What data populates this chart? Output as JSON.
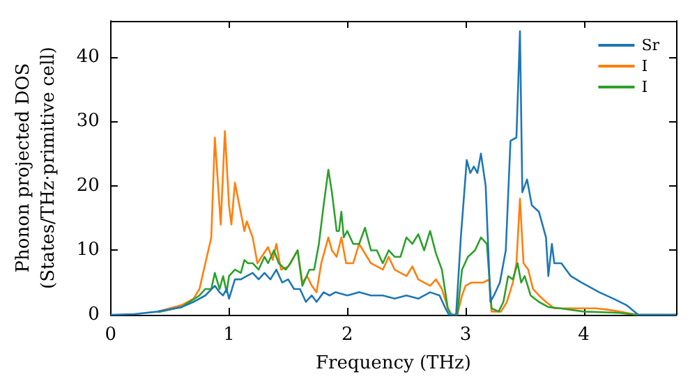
{
  "chart_data": {
    "type": "line",
    "xlabel": "Frequency (THz)",
    "ylabel": "Phonon projected DOS\n(States/THz·primitive cell)",
    "xlim": [
      0,
      4.78
    ],
    "ylim": [
      0,
      45.6
    ],
    "xticks": [
      0,
      1,
      2,
      3,
      4
    ],
    "yticks": [
      0,
      10,
      20,
      30,
      40
    ],
    "grid": false,
    "legend": "top right",
    "marker": "none",
    "line_style": "solid",
    "series": [
      {
        "name": "Sr",
        "color": "#1f77b4",
        "x": [
          0,
          0.2,
          0.4,
          0.6,
          0.7,
          0.8,
          0.88,
          0.92,
          0.95,
          0.98,
          1.0,
          1.05,
          1.1,
          1.15,
          1.2,
          1.25,
          1.3,
          1.35,
          1.4,
          1.45,
          1.5,
          1.55,
          1.6,
          1.65,
          1.7,
          1.74,
          1.8,
          1.85,
          1.9,
          2.0,
          2.1,
          2.2,
          2.3,
          2.4,
          2.5,
          2.6,
          2.7,
          2.78,
          2.83,
          2.86,
          2.92,
          2.96,
          3.01,
          3.04,
          3.07,
          3.1,
          3.13,
          3.17,
          3.21,
          3.24,
          3.29,
          3.34,
          3.38,
          3.43,
          3.46,
          3.48,
          3.52,
          3.56,
          3.62,
          3.68,
          3.7,
          3.73,
          3.75,
          3.81,
          3.89,
          3.98,
          4.13,
          4.25,
          4.36,
          4.46,
          4.78
        ],
        "values": [
          0,
          0.1,
          0.5,
          1.2,
          2,
          3,
          4.5,
          3.5,
          3,
          4,
          2.5,
          5.5,
          5.5,
          6,
          6.5,
          5.5,
          6.5,
          5.5,
          7,
          5,
          5.5,
          4,
          4,
          2,
          3,
          2,
          3.5,
          3,
          3.5,
          3,
          3.5,
          3,
          3,
          2.5,
          3,
          2.5,
          3.5,
          3,
          1,
          0,
          0,
          12,
          24,
          22,
          23,
          22,
          25,
          20,
          2,
          3,
          5,
          10,
          27,
          27.5,
          44,
          19,
          21,
          17,
          16,
          12,
          6,
          11,
          8,
          8,
          6,
          5,
          3.5,
          2.5,
          1.5,
          0,
          0
        ]
      },
      {
        "name": "I",
        "color": "#ff7f0e",
        "x": [
          0.4,
          0.6,
          0.7,
          0.75,
          0.8,
          0.85,
          0.88,
          0.93,
          0.965,
          1.0,
          1.02,
          1.05,
          1.13,
          1.15,
          1.2,
          1.24,
          1.33,
          1.37,
          1.4,
          1.44,
          1.5,
          1.58,
          1.62,
          1.66,
          1.7,
          1.74,
          1.78,
          1.84,
          1.87,
          1.91,
          1.95,
          1.99,
          2.05,
          2.1,
          2.2,
          2.3,
          2.35,
          2.4,
          2.5,
          2.55,
          2.6,
          2.7,
          2.75,
          2.8,
          2.85,
          2.88,
          2.93,
          2.97,
          3.0,
          3.05,
          3.15,
          3.2,
          3.22,
          3.3,
          3.35,
          3.4,
          3.43,
          3.46,
          3.49,
          3.53,
          3.57,
          3.62,
          3.68,
          3.75,
          3.9,
          4.1,
          4.2,
          4.3,
          4.45,
          4.78
        ],
        "values": [
          0.5,
          1.5,
          2.5,
          4,
          8,
          12,
          27.5,
          14,
          28.5,
          17,
          14,
          20.5,
          13,
          14.5,
          12,
          8,
          10.5,
          8.5,
          11,
          7,
          7.5,
          10,
          5,
          6,
          4.5,
          3.5,
          8,
          12,
          10,
          9,
          12,
          8,
          8,
          11,
          8,
          7,
          9,
          7,
          6,
          7.5,
          5.5,
          4.5,
          5.5,
          4,
          1,
          0,
          0,
          3,
          4.5,
          5,
          5,
          5.5,
          0.5,
          0.5,
          2,
          5,
          8,
          18,
          8,
          7,
          4,
          3,
          2,
          1,
          1,
          1,
          0.8,
          0.5,
          0,
          0
        ]
      },
      {
        "name": "I",
        "color": "#2ca02c",
        "x": [
          0.4,
          0.6,
          0.75,
          0.8,
          0.85,
          0.88,
          0.92,
          0.95,
          0.98,
          1.0,
          1.05,
          1.1,
          1.13,
          1.16,
          1.2,
          1.25,
          1.3,
          1.33,
          1.38,
          1.42,
          1.48,
          1.52,
          1.58,
          1.62,
          1.68,
          1.72,
          1.76,
          1.8,
          1.84,
          1.87,
          1.91,
          1.93,
          1.95,
          1.97,
          2.0,
          2.05,
          2.1,
          2.15,
          2.2,
          2.25,
          2.3,
          2.35,
          2.4,
          2.45,
          2.5,
          2.55,
          2.6,
          2.65,
          2.7,
          2.75,
          2.8,
          2.85,
          2.88,
          2.93,
          2.97,
          3.02,
          3.08,
          3.13,
          3.18,
          3.22,
          3.28,
          3.32,
          3.36,
          3.4,
          3.44,
          3.47,
          3.5,
          3.55,
          3.62,
          3.7,
          3.8,
          4.0,
          4.3,
          4.45,
          4.78
        ],
        "values": [
          0.4,
          1.2,
          3,
          4,
          4,
          6.5,
          4,
          6,
          3.5,
          6,
          7,
          6.5,
          8.5,
          8,
          8,
          7,
          9,
          8,
          10,
          8,
          7,
          8,
          10,
          4.5,
          7,
          7,
          11,
          17,
          22.5,
          19,
          13,
          13,
          16,
          12,
          13,
          11,
          11,
          13.5,
          10,
          10,
          8,
          10,
          9,
          9,
          12,
          11,
          12.5,
          10,
          13,
          9.5,
          7,
          1,
          0,
          0,
          7,
          9,
          10,
          12,
          11,
          1,
          0.5,
          2,
          6,
          5.5,
          8,
          5,
          6,
          3,
          2,
          1.2,
          1,
          0.5,
          0.3,
          0,
          0
        ]
      }
    ]
  }
}
